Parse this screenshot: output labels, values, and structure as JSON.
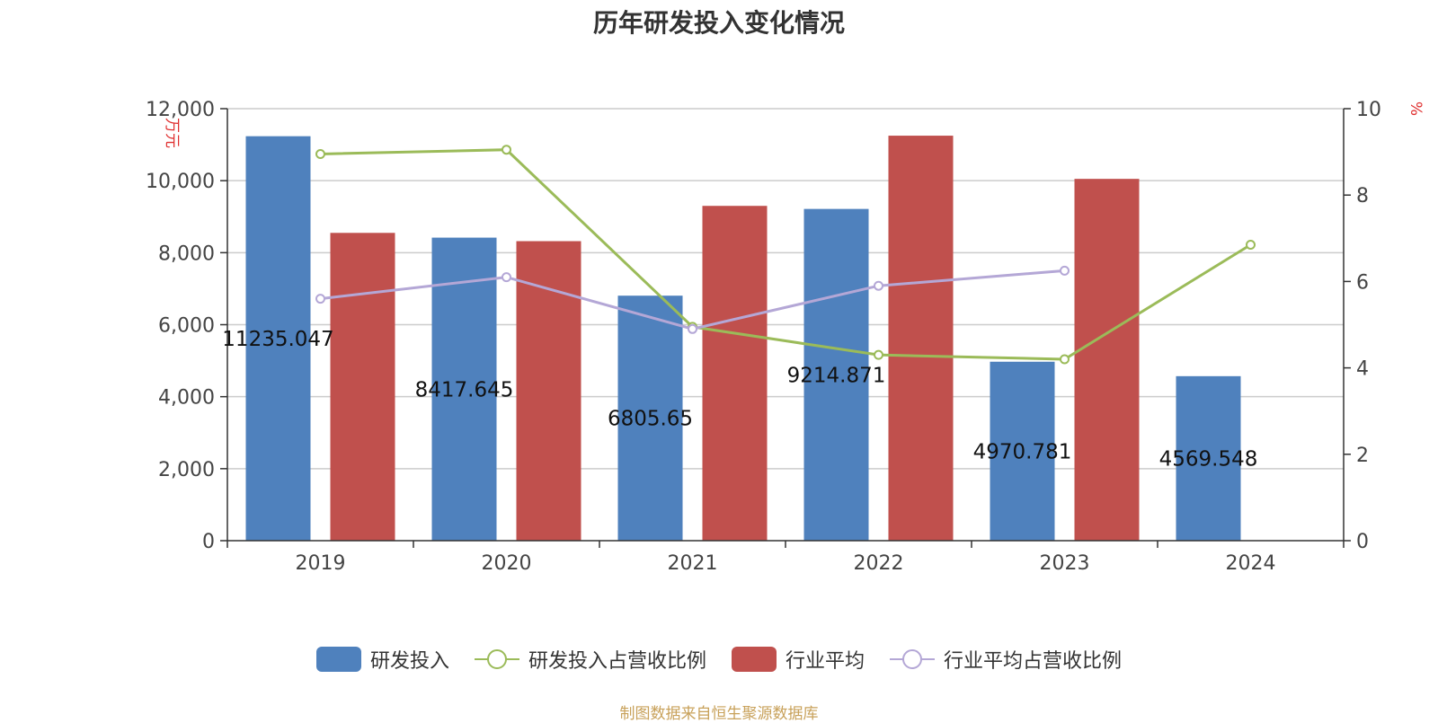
{
  "chart_data": {
    "type": "bar",
    "title": "历年研发投入变化情况",
    "categories": [
      "2019",
      "2020",
      "2021",
      "2022",
      "2023",
      "2024"
    ],
    "y_left": {
      "label": "万元",
      "range": [
        0,
        12000
      ],
      "ticks": [
        "0",
        "2,000",
        "4,000",
        "6,000",
        "8,000",
        "10,000",
        "12,000"
      ],
      "tick_values": [
        0,
        2000,
        4000,
        6000,
        8000,
        10000,
        12000
      ]
    },
    "y_right": {
      "label": "%",
      "range": [
        0,
        10
      ],
      "ticks": [
        "0",
        "2",
        "4",
        "6",
        "8",
        "10"
      ],
      "tick_values": [
        0,
        2,
        4,
        6,
        8,
        10
      ]
    },
    "series": [
      {
        "name": "研发投入",
        "type": "bar",
        "axis": "left",
        "color": "#4f81bd",
        "values": [
          11235.047,
          8417.645,
          6805.65,
          9214.871,
          4970.781,
          4569.548
        ],
        "labels": [
          "11235.047",
          "8417.645",
          "6805.65",
          "9214.871",
          "4970.781",
          "4569.548"
        ]
      },
      {
        "name": "行业平均",
        "type": "bar",
        "axis": "left",
        "color": "#c0504d",
        "values": [
          8550,
          8320,
          9300,
          11250,
          10050,
          null
        ]
      },
      {
        "name": "研发投入占营收比例",
        "type": "line",
        "axis": "right",
        "color": "#9bbb59",
        "values": [
          8.95,
          9.05,
          4.95,
          4.3,
          4.2,
          6.85
        ]
      },
      {
        "name": "行业平均占营收比例",
        "type": "line",
        "axis": "right",
        "color": "#b4a7d6",
        "values": [
          5.6,
          6.1,
          4.9,
          5.9,
          6.25,
          null
        ]
      }
    ],
    "legend": [
      "研发投入",
      "研发投入占营收比例",
      "行业平均",
      "行业平均占营收比例"
    ],
    "grid": true,
    "legend_position": "bottom"
  },
  "source_note": "制图数据来自恒生聚源数据库"
}
